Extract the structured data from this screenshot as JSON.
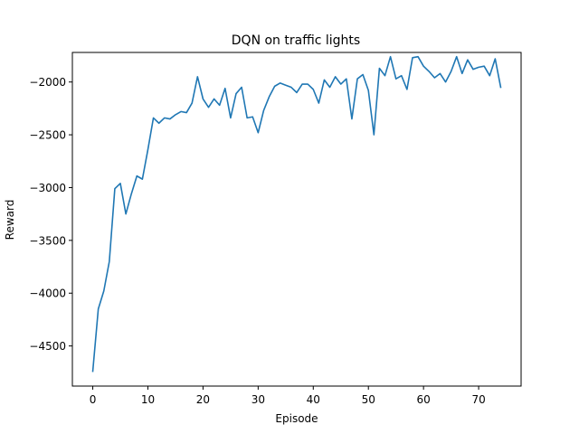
{
  "chart_data": {
    "type": "line",
    "title": "DQN on traffic lights",
    "xlabel": "Episode",
    "ylabel": "Reward",
    "xlim": [
      -3.7,
      77.7
    ],
    "ylim": [
      -4880,
      -1720
    ],
    "x_ticks": [
      0,
      10,
      20,
      30,
      40,
      50,
      60,
      70
    ],
    "y_ticks": [
      -4500,
      -4000,
      -3500,
      -3000,
      -2500,
      -2000
    ],
    "x_tick_labels": [
      "0",
      "10",
      "20",
      "30",
      "40",
      "50",
      "60",
      "70"
    ],
    "y_tick_labels": [
      "−4500",
      "−4000",
      "−3500",
      "−3000",
      "−2500",
      "−2000"
    ],
    "grid": false,
    "legend": "none",
    "series": [
      {
        "color": "#1f77b4",
        "x": [
          0,
          1,
          2,
          3,
          4,
          5,
          6,
          7,
          8,
          9,
          10,
          11,
          12,
          13,
          14,
          15,
          16,
          17,
          18,
          19,
          20,
          21,
          22,
          23,
          24,
          25,
          26,
          27,
          28,
          29,
          30,
          31,
          32,
          33,
          34,
          35,
          36,
          37,
          38,
          39,
          40,
          41,
          42,
          43,
          44,
          45,
          46,
          47,
          48,
          49,
          50,
          51,
          52,
          53,
          54,
          55,
          56,
          57,
          58,
          59,
          60,
          61,
          62,
          63,
          64,
          65,
          66,
          67,
          68,
          69,
          70,
          71,
          72,
          73,
          74
        ],
        "values": [
          -4740,
          -4150,
          -3980,
          -3700,
          -3010,
          -2960,
          -3250,
          -3060,
          -2890,
          -2920,
          -2640,
          -2340,
          -2390,
          -2340,
          -2350,
          -2310,
          -2280,
          -2290,
          -2200,
          -1950,
          -2160,
          -2240,
          -2160,
          -2220,
          -2060,
          -2340,
          -2110,
          -2050,
          -2340,
          -2330,
          -2480,
          -2270,
          -2140,
          -2040,
          -2010,
          -2030,
          -2050,
          -2100,
          -2020,
          -2020,
          -2070,
          -2200,
          -1980,
          -2050,
          -1950,
          -2020,
          -1970,
          -2350,
          -1970,
          -1930,
          -2080,
          -2500,
          -1870,
          -1940,
          -1760,
          -1970,
          -1940,
          -2070,
          -1770,
          -1760,
          -1850,
          -1900,
          -1960,
          -1920,
          -2000,
          -1900,
          -1760,
          -1920,
          -1790,
          -1880,
          -1860,
          -1850,
          -1940,
          -1780,
          -2050
        ]
      }
    ]
  }
}
